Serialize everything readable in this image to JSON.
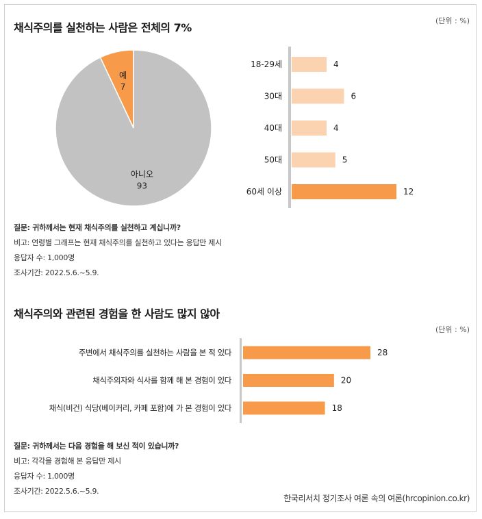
{
  "colors": {
    "accent": "#f79a4a",
    "accent_light": "#fbd3b0",
    "gray": "#c2c2c2",
    "axis": "#c8c8c8"
  },
  "section1": {
    "title": "채식주의를 실천하는 사람은 전체의 7%",
    "unit": "(단위 : %)",
    "note": {
      "question": "질문: 귀하께서는 현재 채식주의를 실천하고 계십니까?",
      "remark": "비고: 연령별 그래프는 현재 채식주의를 실천하고 있다는 응답만 제시",
      "respondents": "응답자 수: 1,000명",
      "period": "조사기간: 2022.5.6.~5.9."
    }
  },
  "section2": {
    "title": "채식주의와 관련된 경험을 한 사람도 많지 않아",
    "unit": "(단위 : %)",
    "note": {
      "question": "질문: 귀하께서는 다음 경험을 해 보신 적이 있습니까?",
      "remark": "비고: 각각을 경험해 본 응답만 제시",
      "respondents": "응답자 수: 1,000명",
      "period": "조사기간: 2022.5.6.~5.9."
    }
  },
  "source": "한국리서치 정기조사 여론 속의 여론(hrcopinion.co.kr)",
  "chart_data": [
    {
      "type": "pie",
      "title": "채식주의를 실천하는 사람은 전체의 7%",
      "categories": [
        "예",
        "아니오"
      ],
      "values": [
        7,
        93
      ]
    },
    {
      "type": "bar",
      "orientation": "horizontal",
      "categories": [
        "18-29세",
        "30대",
        "40대",
        "50대",
        "60세 이상"
      ],
      "values": [
        4,
        6,
        4,
        5,
        12
      ],
      "highlight": "60세 이상",
      "xlim": [
        0,
        12
      ]
    },
    {
      "type": "bar",
      "orientation": "horizontal",
      "title": "채식주의와 관련된 경험을 한 사람도 많지 않아",
      "categories": [
        "주변에서 채식주의를 실천하는 사람을 본 적 있다",
        "채식주의자와 식사를 함께 해 본 경험이 있다",
        "채식(비건) 식당(베이커리, 카페 포함)에 가 본 경험이 있다"
      ],
      "values": [
        28,
        20,
        18
      ],
      "xlim": [
        0,
        28
      ]
    }
  ]
}
